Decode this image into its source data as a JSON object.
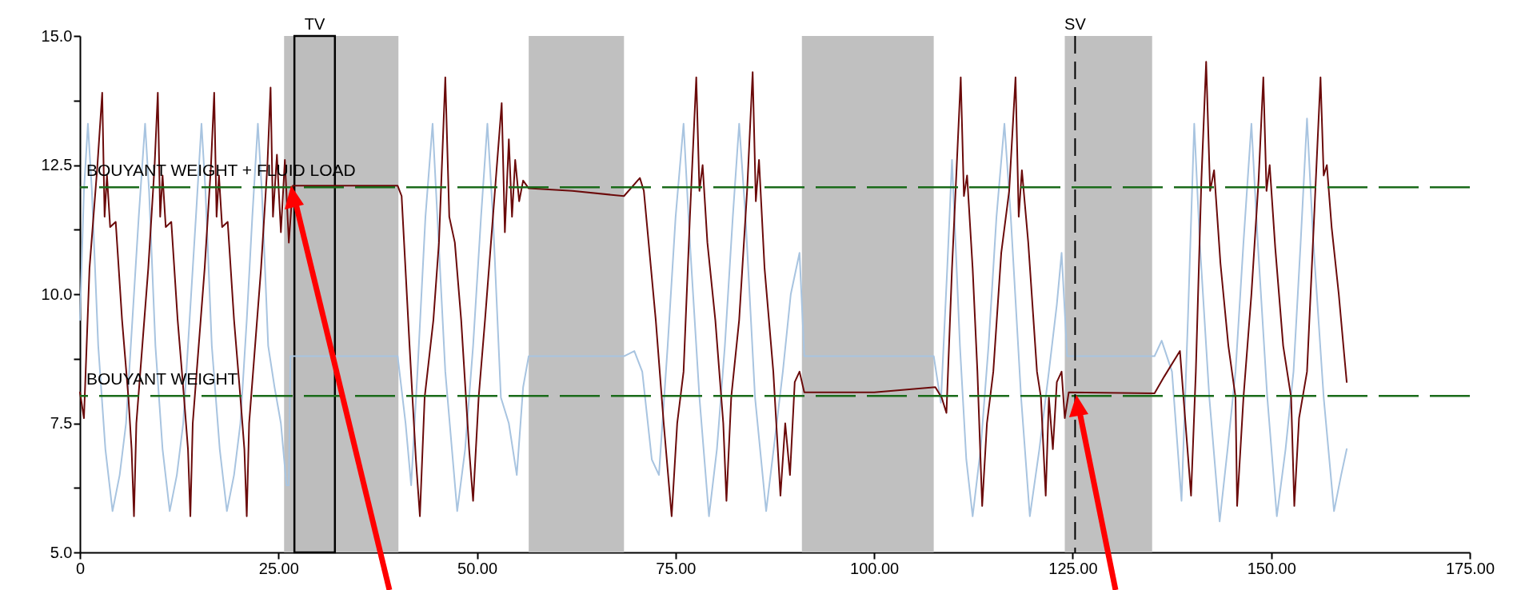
{
  "chart_data": {
    "type": "line",
    "xlim": [
      0,
      175
    ],
    "ylim": [
      5,
      15
    ],
    "xticks": [
      {
        "value": 0,
        "label": "0"
      },
      {
        "value": 25,
        "label": "25.00"
      },
      {
        "value": 50,
        "label": "50.00"
      },
      {
        "value": 75,
        "label": "75.00"
      },
      {
        "value": 100,
        "label": "100.00"
      },
      {
        "value": 125,
        "label": "125.00"
      },
      {
        "value": 150,
        "label": "150.00"
      },
      {
        "value": 175,
        "label": "175.00"
      }
    ],
    "yticks": [
      {
        "value": 5,
        "label": "5.0"
      },
      {
        "value": 6.25,
        "label": null
      },
      {
        "value": 7.5,
        "label": "7.5"
      },
      {
        "value": 8.75,
        "label": null
      },
      {
        "value": 10,
        "label": "10.0"
      },
      {
        "value": 11.25,
        "label": null
      },
      {
        "value": 12.5,
        "label": "12.5"
      },
      {
        "value": 13.75,
        "label": null
      },
      {
        "value": 15,
        "label": "15.0"
      }
    ],
    "grid": false,
    "marker": "none",
    "line_style": "solid",
    "series": [
      {
        "color": "#a8c4e0",
        "x": [
          0,
          0.5,
          1.0,
          1.5,
          2.3,
          3.2,
          4.1,
          5.0,
          5.8,
          6.6,
          7.4,
          8.2,
          8.7,
          9.5,
          10.4,
          11.3,
          12.2,
          13.0,
          13.8,
          14.6,
          15.3,
          15.8,
          16.6,
          17.6,
          18.5,
          19.4,
          20.2,
          21.0,
          21.7,
          22.4,
          22.9,
          23.7,
          24.5,
          25.3,
          26.0,
          26.3,
          26.5,
          40.0,
          41.0,
          41.7,
          42.5,
          43.5,
          44.4,
          45.0,
          46.0,
          47.5,
          48.5,
          49.5,
          50.5,
          51.3,
          52.0,
          53.0,
          54.0,
          55.0,
          55.8,
          56.5,
          68.5,
          69.8,
          70.8,
          72.0,
          72.9,
          74.0,
          75.0,
          76.0,
          76.8,
          78.0,
          79.2,
          80.2,
          81.2,
          82.2,
          83.0,
          83.8,
          85.0,
          86.4,
          87.5,
          88.5,
          89.5,
          90.6,
          91.2,
          107.5,
          108.4,
          109.2,
          109.8,
          110.8,
          111.6,
          112.4,
          113.4,
          114.4,
          115.4,
          116.4,
          117.2,
          118.5,
          119.6,
          120.8,
          122.0,
          123.0,
          123.6,
          124.3,
          135.3,
          136.2,
          137.5,
          138.7,
          139.5,
          140.3,
          141.0,
          142.2,
          143.5,
          144.5,
          145.5,
          146.5,
          147.5,
          148.3,
          149.5,
          150.7,
          151.8,
          152.8,
          153.7,
          154.5,
          155.3,
          156.6,
          157.9,
          158.8,
          159.5
        ],
        "values": [
          9.5,
          12.0,
          13.3,
          12.0,
          9.0,
          7.0,
          5.8,
          6.5,
          7.5,
          9.5,
          11.5,
          13.3,
          12.0,
          9.0,
          7.0,
          5.8,
          6.5,
          7.5,
          9.5,
          11.5,
          13.3,
          12.0,
          9.0,
          7.0,
          5.8,
          6.5,
          7.5,
          9.5,
          11.5,
          13.3,
          12.0,
          9.0,
          8.2,
          7.5,
          6.3,
          6.3,
          8.8,
          8.8,
          7.5,
          6.3,
          8.5,
          11.5,
          13.3,
          11.5,
          8.5,
          5.8,
          7.0,
          9.0,
          11.5,
          13.3,
          11.5,
          8.0,
          7.5,
          6.5,
          8.2,
          8.8,
          8.8,
          8.9,
          8.5,
          6.8,
          6.5,
          9.0,
          11.5,
          13.3,
          11.0,
          8.0,
          5.7,
          7.0,
          9.0,
          11.5,
          13.3,
          11.5,
          8.0,
          5.8,
          7.2,
          8.5,
          10.0,
          10.8,
          8.8,
          8.8,
          7.9,
          10.5,
          12.6,
          9.0,
          6.8,
          5.7,
          7.0,
          9.0,
          11.5,
          13.3,
          11.5,
          8.0,
          5.7,
          7.0,
          8.5,
          9.8,
          10.8,
          8.8,
          8.8,
          9.1,
          8.5,
          6.0,
          9.5,
          13.3,
          11.0,
          8.0,
          5.6,
          7.0,
          8.5,
          11.0,
          13.3,
          11.0,
          8.0,
          5.7,
          7.0,
          8.5,
          11.0,
          13.4,
          11.0,
          8.0,
          5.8,
          6.5,
          7.0
        ]
      },
      {
        "color": "#6b0a0a",
        "x": [
          0,
          0.5,
          1.2,
          2.2,
          2.8,
          3.1,
          3.4,
          3.8,
          4.5,
          5.3,
          6.1,
          6.5,
          6.8,
          7.1,
          7.6,
          8.6,
          9.4,
          9.8,
          10.1,
          10.4,
          10.8,
          11.5,
          12.3,
          13.1,
          13.6,
          13.9,
          14.2,
          14.7,
          15.7,
          16.5,
          16.9,
          17.2,
          17.5,
          17.9,
          18.6,
          19.4,
          20.2,
          20.7,
          21.0,
          21.3,
          21.8,
          22.8,
          23.6,
          24.0,
          24.3,
          24.8,
          25.3,
          25.8,
          26.3,
          26.8,
          40.0,
          40.5,
          41.5,
          42.3,
          42.8,
          43.4,
          44.5,
          45.2,
          46.0,
          46.5,
          47.2,
          48.0,
          49.0,
          49.5,
          50.2,
          51.0,
          52.0,
          53.1,
          53.5,
          54.0,
          54.4,
          54.8,
          55.3,
          55.8,
          56.5,
          62.0,
          68.5,
          70.5,
          71.0,
          72.5,
          73.5,
          74.5,
          75.2,
          76.0,
          76.8,
          77.6,
          78.0,
          78.4,
          79.0,
          80.0,
          81.0,
          81.4,
          82.0,
          83.0,
          84.0,
          84.7,
          85.1,
          85.5,
          86.2,
          87.3,
          88.2,
          88.8,
          89.4,
          90.0,
          90.6,
          91.2,
          100,
          107.7,
          108.5,
          109.1,
          109.8,
          110.4,
          110.9,
          111.3,
          111.7,
          112.4,
          113.0,
          113.6,
          114.2,
          115.0,
          116.0,
          117.0,
          117.8,
          118.2,
          118.6,
          119.4,
          120.5,
          121.0,
          121.6,
          122.0,
          122.5,
          123.0,
          123.6,
          124.0,
          124.5,
          135.3,
          136.5,
          138.5,
          139.2,
          139.9,
          140.5,
          141.2,
          141.8,
          142.3,
          142.8,
          143.6,
          144.6,
          145.5,
          145.7,
          146.5,
          147.5,
          148.4,
          149.0,
          149.4,
          149.8,
          150.5,
          151.5,
          152.5,
          152.9,
          153.5,
          154.5,
          155.4,
          156.2,
          156.6,
          157.0,
          157.6,
          158.5,
          159.2,
          159.5
        ],
        "values": [
          8.1,
          7.6,
          10.5,
          12.5,
          13.9,
          11.5,
          12.3,
          11.3,
          11.4,
          9.5,
          8.0,
          7.0,
          5.7,
          7.5,
          8.5,
          10.5,
          12.5,
          13.9,
          11.5,
          12.3,
          11.3,
          11.4,
          9.5,
          8.0,
          7.0,
          5.7,
          7.5,
          8.5,
          10.5,
          12.5,
          13.9,
          11.5,
          12.3,
          11.3,
          11.4,
          9.5,
          8.0,
          7.0,
          5.7,
          7.5,
          8.5,
          10.5,
          12.5,
          14.0,
          11.5,
          12.7,
          11.2,
          12.6,
          11.0,
          12.1,
          12.1,
          11.9,
          9.0,
          6.8,
          5.7,
          8.0,
          9.5,
          11.0,
          14.2,
          11.5,
          11.0,
          9.5,
          7.0,
          6.0,
          8.0,
          9.5,
          11.5,
          13.7,
          11.2,
          13.0,
          11.5,
          12.6,
          11.8,
          12.2,
          12.05,
          12.0,
          11.9,
          12.25,
          12.0,
          9.5,
          7.5,
          5.7,
          7.5,
          8.5,
          11.5,
          14.2,
          12.0,
          12.5,
          11.0,
          9.5,
          7.5,
          6.0,
          8.0,
          9.5,
          12.0,
          14.3,
          11.8,
          12.6,
          10.5,
          8.5,
          6.1,
          7.5,
          6.5,
          8.3,
          8.5,
          8.1,
          8.1,
          8.2,
          8.0,
          7.7,
          10.5,
          12.5,
          14.2,
          11.9,
          12.3,
          10.5,
          8.5,
          5.9,
          7.5,
          8.5,
          10.8,
          12.0,
          14.2,
          11.5,
          12.4,
          11.0,
          8.5,
          8.0,
          6.1,
          8.0,
          7.0,
          8.3,
          8.5,
          7.6,
          8.1,
          8.08,
          8.4,
          8.9,
          7.5,
          6.1,
          8.5,
          12.2,
          14.5,
          12.0,
          12.4,
          10.6,
          9.0,
          8.0,
          5.9,
          8.0,
          10.0,
          12.2,
          14.2,
          12.0,
          12.5,
          10.9,
          9.0,
          8.0,
          5.9,
          7.6,
          8.5,
          11.5,
          14.2,
          12.3,
          12.5,
          11.3,
          10.0,
          8.8,
          8.3
        ]
      }
    ],
    "bands": [
      {
        "axis": "x",
        "from": 25.7,
        "to": 40.1,
        "color": "#c0c0c0"
      },
      {
        "axis": "x",
        "from": 56.5,
        "to": 68.5,
        "color": "#c0c0c0"
      },
      {
        "axis": "x",
        "from": 90.9,
        "to": 107.5,
        "color": "#c0c0c0"
      },
      {
        "axis": "x",
        "from": 124.0,
        "to": 135.0,
        "color": "#c0c0c0"
      },
      {
        "axis": "x",
        "from": 27.0,
        "to": 32.1,
        "label": "TV",
        "color": "#bdbdbd"
      }
    ],
    "ref_lines": [
      {
        "axis": "y",
        "value": 12.07,
        "label": "BOUYANT WEIGHT + FLUID LOAD",
        "color": "#1a6b1a",
        "line_style": "dashed"
      },
      {
        "axis": "y",
        "value": 8.03,
        "label": "BOUYANT WEIGHT",
        "color": "#1a6b1a",
        "line_style": "dashed"
      },
      {
        "axis": "x",
        "value": 125.3,
        "label": "SV",
        "color": "#000000",
        "line_style": "dashed"
      }
    ]
  }
}
